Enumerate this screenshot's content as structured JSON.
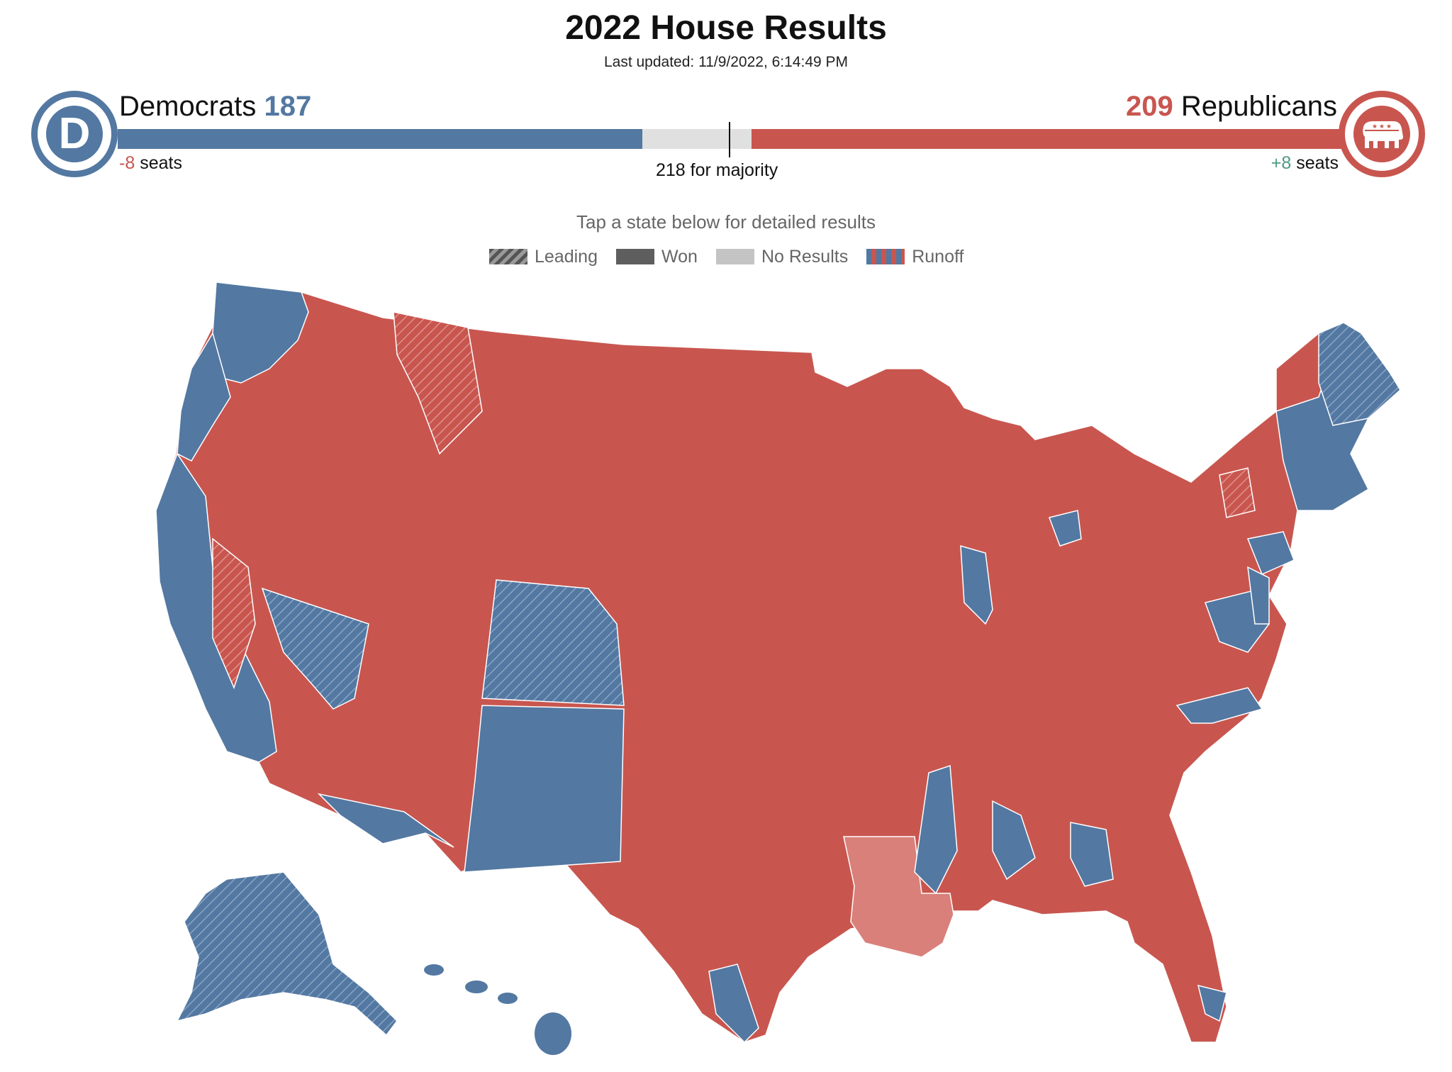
{
  "header": {
    "title": "2022 House Results",
    "last_updated": "Last updated: 11/9/2022, 6:14:49 PM"
  },
  "democrats": {
    "name": "Democrats",
    "seats": "187",
    "change": "-8",
    "change_unit": "seats",
    "logo_letter": "D",
    "color": "#5378a2"
  },
  "republicans": {
    "name": "Republicans",
    "seats": "209",
    "change": "+8",
    "change_unit": "seats",
    "logo_icon": "elephant-icon",
    "color": "#c8564f"
  },
  "majority": {
    "label": "218 for majority",
    "seats_needed": 218,
    "total_seats": 435
  },
  "instructions": "Tap a state below for detailed results",
  "legend": [
    {
      "label": "Leading",
      "pattern": "hatched"
    },
    {
      "label": "Won",
      "pattern": "solid"
    },
    {
      "label": "No Results",
      "pattern": "light-gray"
    },
    {
      "label": "Runoff",
      "pattern": "striped-blue-red"
    }
  ],
  "map": {
    "colors": {
      "democrat": "#5378a2",
      "republican": "#c8564f",
      "no_results": "#d9807a"
    },
    "states_shown": [
      {
        "state": "WA",
        "party": "democrat",
        "status": "won"
      },
      {
        "state": "OR",
        "party": "democrat",
        "status": "won"
      },
      {
        "state": "CA",
        "party": "mixed",
        "status": "leading"
      },
      {
        "state": "NV",
        "party": "democrat",
        "status": "leading"
      },
      {
        "state": "ID",
        "party": "republican",
        "status": "won"
      },
      {
        "state": "MT",
        "party": "republican",
        "status": "won"
      },
      {
        "state": "WY",
        "party": "republican",
        "status": "won"
      },
      {
        "state": "UT",
        "party": "republican",
        "status": "won"
      },
      {
        "state": "AZ",
        "party": "mixed",
        "status": "won"
      },
      {
        "state": "CO",
        "party": "democrat",
        "status": "leading"
      },
      {
        "state": "NM",
        "party": "democrat",
        "status": "won"
      },
      {
        "state": "ND",
        "party": "republican",
        "status": "won"
      },
      {
        "state": "SD",
        "party": "republican",
        "status": "won"
      },
      {
        "state": "NE",
        "party": "republican",
        "status": "won"
      },
      {
        "state": "KS",
        "party": "republican",
        "status": "won"
      },
      {
        "state": "OK",
        "party": "republican",
        "status": "won"
      },
      {
        "state": "TX",
        "party": "republican",
        "status": "won"
      },
      {
        "state": "MN",
        "party": "republican",
        "status": "won"
      },
      {
        "state": "IA",
        "party": "republican",
        "status": "won"
      },
      {
        "state": "MO",
        "party": "republican",
        "status": "won"
      },
      {
        "state": "AR",
        "party": "republican",
        "status": "won"
      },
      {
        "state": "LA",
        "party": "republican",
        "status": "no-results"
      },
      {
        "state": "WI",
        "party": "republican",
        "status": "won"
      },
      {
        "state": "IL",
        "party": "democrat",
        "status": "won"
      },
      {
        "state": "MI",
        "party": "republican",
        "status": "won"
      },
      {
        "state": "IN",
        "party": "republican",
        "status": "won"
      },
      {
        "state": "OH",
        "party": "republican",
        "status": "won"
      },
      {
        "state": "KY",
        "party": "republican",
        "status": "won"
      },
      {
        "state": "TN",
        "party": "republican",
        "status": "won"
      },
      {
        "state": "MS",
        "party": "republican",
        "status": "won"
      },
      {
        "state": "AL",
        "party": "republican",
        "status": "won"
      },
      {
        "state": "GA",
        "party": "republican",
        "status": "won"
      },
      {
        "state": "FL",
        "party": "republican",
        "status": "won"
      },
      {
        "state": "SC",
        "party": "republican",
        "status": "won"
      },
      {
        "state": "NC",
        "party": "democrat",
        "status": "won"
      },
      {
        "state": "VA",
        "party": "republican",
        "status": "won"
      },
      {
        "state": "WV",
        "party": "republican",
        "status": "won"
      },
      {
        "state": "PA",
        "party": "republican",
        "status": "won"
      },
      {
        "state": "NY",
        "party": "republican",
        "status": "won"
      },
      {
        "state": "NJ",
        "party": "democrat",
        "status": "won"
      },
      {
        "state": "MD",
        "party": "democrat",
        "status": "won"
      },
      {
        "state": "DE",
        "party": "democrat",
        "status": "won"
      },
      {
        "state": "VT",
        "party": "democrat",
        "status": "won"
      },
      {
        "state": "NH",
        "party": "democrat",
        "status": "won"
      },
      {
        "state": "ME",
        "party": "democrat",
        "status": "leading"
      },
      {
        "state": "MA",
        "party": "democrat",
        "status": "won"
      },
      {
        "state": "AK",
        "party": "democrat",
        "status": "leading"
      },
      {
        "state": "HI",
        "party": "democrat",
        "status": "won"
      }
    ]
  }
}
